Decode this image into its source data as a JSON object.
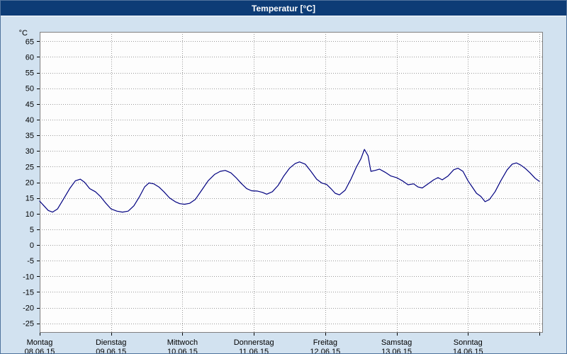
{
  "window": {
    "title": "Temperatur [°C]"
  },
  "colors": {
    "titlebar_bg": "#0d3c76",
    "titlebar_text": "#ffffff",
    "window_bg": "#d2e2f0",
    "plot_bg": "#fdfdfd",
    "grid": "#9a9a9a",
    "frame": "#7f7f7f",
    "line": "#000080"
  },
  "chart_data": {
    "type": "line",
    "title": "Temperatur [°C]",
    "ylabel": "°C",
    "xlabel": "",
    "ylim": [
      -28,
      68
    ],
    "xlim": [
      0,
      7.05
    ],
    "grid": "dotted",
    "legend": "none",
    "plot_bg": "#fdfdfd",
    "grid_color": "#9a9a9a",
    "frame_color": "#7f7f7f",
    "line_color": "#000080",
    "yticks": [
      65,
      60,
      55,
      50,
      45,
      40,
      35,
      30,
      25,
      20,
      15,
      10,
      5,
      0,
      -5,
      -10,
      -15,
      -20,
      -25
    ],
    "days": [
      {
        "name": "Montag",
        "date": "08.06.15"
      },
      {
        "name": "Dienstag",
        "date": "09.06.15"
      },
      {
        "name": "Mittwoch",
        "date": "10.06.15"
      },
      {
        "name": "Donnerstag",
        "date": "11.06.15"
      },
      {
        "name": "Freitag",
        "date": "12.06.15"
      },
      {
        "name": "Samstag",
        "date": "13.06.15"
      },
      {
        "name": "Sonntag",
        "date": "14.06.15"
      }
    ],
    "series": [
      {
        "name": "Temperatur",
        "unit": "°C",
        "points": [
          [
            0,
            14
          ],
          [
            0.06,
            12.5
          ],
          [
            0.12,
            11
          ],
          [
            0.18,
            10.5
          ],
          [
            0.25,
            11.5
          ],
          [
            0.33,
            14.5
          ],
          [
            0.42,
            18
          ],
          [
            0.5,
            20.5
          ],
          [
            0.57,
            21
          ],
          [
            0.63,
            20
          ],
          [
            0.7,
            18
          ],
          [
            0.78,
            17
          ],
          [
            0.85,
            15.5
          ],
          [
            0.92,
            13.5
          ],
          [
            1.0,
            11.5
          ],
          [
            1.08,
            10.8
          ],
          [
            1.16,
            10.5
          ],
          [
            1.24,
            10.8
          ],
          [
            1.32,
            12.5
          ],
          [
            1.4,
            15.5
          ],
          [
            1.47,
            18.5
          ],
          [
            1.53,
            19.8
          ],
          [
            1.6,
            19.5
          ],
          [
            1.67,
            18.5
          ],
          [
            1.74,
            17
          ],
          [
            1.82,
            15
          ],
          [
            1.9,
            13.8
          ],
          [
            1.96,
            13.2
          ],
          [
            2.03,
            13
          ],
          [
            2.1,
            13.3
          ],
          [
            2.18,
            14.5
          ],
          [
            2.27,
            17.5
          ],
          [
            2.36,
            20.5
          ],
          [
            2.45,
            22.5
          ],
          [
            2.53,
            23.5
          ],
          [
            2.6,
            23.8
          ],
          [
            2.68,
            23
          ],
          [
            2.75,
            21.5
          ],
          [
            2.83,
            19.5
          ],
          [
            2.9,
            18
          ],
          [
            2.97,
            17.3
          ],
          [
            3.05,
            17.2
          ],
          [
            3.12,
            16.8
          ],
          [
            3.18,
            16.2
          ],
          [
            3.26,
            17
          ],
          [
            3.34,
            19
          ],
          [
            3.42,
            22
          ],
          [
            3.5,
            24.5
          ],
          [
            3.58,
            26
          ],
          [
            3.64,
            26.5
          ],
          [
            3.72,
            25.8
          ],
          [
            3.8,
            23.5
          ],
          [
            3.88,
            21
          ],
          [
            3.95,
            19.8
          ],
          [
            4.02,
            19.3
          ],
          [
            4.08,
            18
          ],
          [
            4.14,
            16.5
          ],
          [
            4.2,
            16
          ],
          [
            4.28,
            17.5
          ],
          [
            4.36,
            21
          ],
          [
            4.44,
            25
          ],
          [
            4.5,
            27.5
          ],
          [
            4.55,
            30.5
          ],
          [
            4.6,
            28.5
          ],
          [
            4.64,
            23.5
          ],
          [
            4.7,
            23.8
          ],
          [
            4.76,
            24.2
          ],
          [
            4.84,
            23.2
          ],
          [
            4.92,
            22
          ],
          [
            5.0,
            21.5
          ],
          [
            5.08,
            20.5
          ],
          [
            5.16,
            19.2
          ],
          [
            5.24,
            19.5
          ],
          [
            5.3,
            18.5
          ],
          [
            5.36,
            18.2
          ],
          [
            5.44,
            19.5
          ],
          [
            5.52,
            20.8
          ],
          [
            5.58,
            21.5
          ],
          [
            5.64,
            20.8
          ],
          [
            5.72,
            22
          ],
          [
            5.8,
            24
          ],
          [
            5.86,
            24.5
          ],
          [
            5.93,
            23.5
          ],
          [
            6.0,
            20.5
          ],
          [
            6.06,
            18.5
          ],
          [
            6.12,
            16.5
          ],
          [
            6.18,
            15.5
          ],
          [
            6.24,
            13.8
          ],
          [
            6.3,
            14.5
          ],
          [
            6.38,
            17
          ],
          [
            6.46,
            20.5
          ],
          [
            6.55,
            24
          ],
          [
            6.62,
            25.8
          ],
          [
            6.68,
            26.2
          ],
          [
            6.74,
            25.5
          ],
          [
            6.8,
            24.5
          ],
          [
            6.87,
            23
          ],
          [
            6.94,
            21.3
          ],
          [
            7.0,
            20.3
          ]
        ]
      }
    ]
  }
}
